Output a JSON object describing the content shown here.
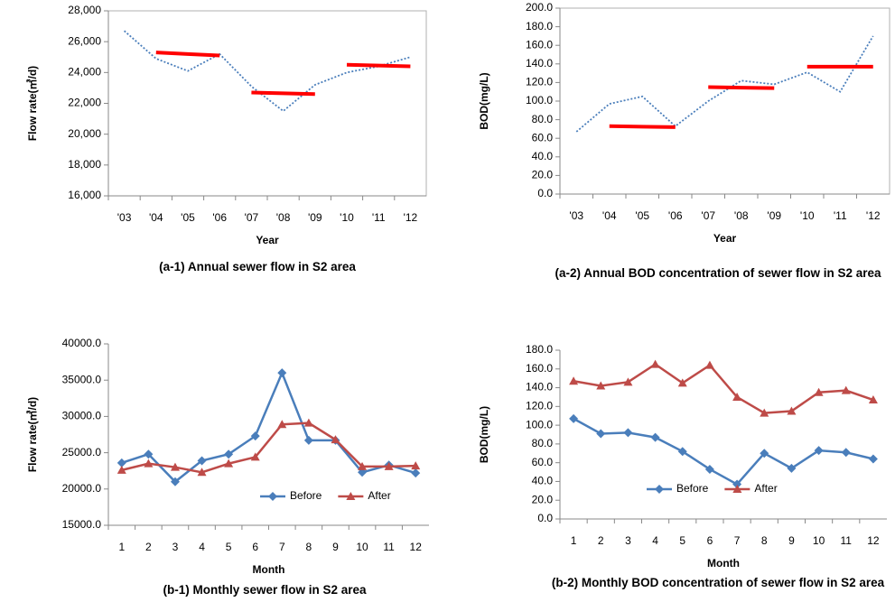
{
  "chart_data": [
    {
      "type": "line",
      "title": "(a-1) Annual sewer flow in S2 area",
      "x_label": "Year",
      "y_label": "Flow rate(㎥/d)",
      "categories": [
        "'03",
        "'04",
        "'05",
        "'06",
        "'07",
        "'08",
        "'09",
        "'10",
        "'11",
        "'12"
      ],
      "series": [
        {
          "color": "#4a7ebb",
          "line_style": "dotted",
          "values": [
            26700,
            24900,
            24100,
            25200,
            23100,
            21500,
            23200,
            24000,
            24400,
            25000
          ]
        },
        {
          "color": "#ff0000",
          "line_width": 4,
          "values": [
            null,
            25300,
            25200,
            25100,
            null,
            null,
            null,
            null,
            null,
            null
          ]
        },
        {
          "color": "#ff0000",
          "line_width": 4,
          "values": [
            null,
            null,
            null,
            null,
            22700,
            22650,
            22600,
            null,
            null,
            null
          ]
        },
        {
          "color": "#ff0000",
          "line_width": 4,
          "values": [
            null,
            null,
            null,
            null,
            null,
            null,
            null,
            24500,
            24450,
            24400
          ]
        }
      ],
      "ylim": [
        16000,
        28000
      ],
      "yticks": [
        {
          "value": 16000,
          "label": "16,000"
        },
        {
          "value": 18000,
          "label": "18,000"
        },
        {
          "value": 20000,
          "label": "20,000"
        },
        {
          "value": 22000,
          "label": "22,000"
        },
        {
          "value": 24000,
          "label": "24,000"
        },
        {
          "value": 26000,
          "label": "26,000"
        },
        {
          "value": 28000,
          "label": "28,000"
        }
      ],
      "frame": true
    },
    {
      "type": "line",
      "title": "(a-2) Annual BOD concentration of sewer flow in S2 area",
      "x_label": "Year",
      "y_label": "BOD(mg/L)",
      "categories": [
        "'03",
        "'04",
        "'05",
        "'06",
        "'07",
        "'08",
        "'09",
        "'10",
        "'11",
        "'12"
      ],
      "series": [
        {
          "color": "#4a7ebb",
          "line_style": "dotted",
          "values": [
            67,
            97,
            105,
            73,
            100,
            122,
            118,
            131,
            110,
            170
          ]
        },
        {
          "color": "#ff0000",
          "line_width": 4,
          "values": [
            null,
            73,
            72.5,
            72,
            null,
            null,
            null,
            null,
            null,
            null
          ]
        },
        {
          "color": "#ff0000",
          "line_width": 4,
          "values": [
            null,
            null,
            null,
            null,
            115,
            114.5,
            114,
            null,
            null,
            null
          ]
        },
        {
          "color": "#ff0000",
          "line_width": 4,
          "values": [
            null,
            null,
            null,
            null,
            null,
            null,
            null,
            137,
            137,
            137
          ]
        }
      ],
      "ylim": [
        0,
        200
      ],
      "yticks": [
        {
          "value": 0,
          "label": "0.0"
        },
        {
          "value": 20,
          "label": "20.0"
        },
        {
          "value": 40,
          "label": "40.0"
        },
        {
          "value": 60,
          "label": "60.0"
        },
        {
          "value": 80,
          "label": "80.0"
        },
        {
          "value": 100,
          "label": "100.0"
        },
        {
          "value": 120,
          "label": "120.0"
        },
        {
          "value": 140,
          "label": "140.0"
        },
        {
          "value": 160,
          "label": "160.0"
        },
        {
          "value": 180,
          "label": "180.0"
        },
        {
          "value": 200,
          "label": "200.0"
        }
      ],
      "frame": true
    },
    {
      "type": "line",
      "title": "(b-1) Monthly sewer flow in S2 area",
      "x_label": "Month",
      "y_label": "Flow rate(㎥/d)",
      "categories": [
        "1",
        "2",
        "3",
        "4",
        "5",
        "6",
        "7",
        "8",
        "9",
        "10",
        "11",
        "12"
      ],
      "series": [
        {
          "name": "Before",
          "color": "#4a7ebb",
          "marker": "diamond",
          "values": [
            23600,
            24800,
            21000,
            23900,
            24800,
            27300,
            36000,
            26700,
            26700,
            22300,
            23300,
            22200
          ]
        },
        {
          "name": "After",
          "color": "#be4b48",
          "marker": "triangle",
          "values": [
            22600,
            23500,
            23000,
            22300,
            23500,
            24400,
            28900,
            29100,
            26800,
            23100,
            23100,
            23200
          ]
        }
      ],
      "ylim": [
        15000,
        40000
      ],
      "yticks": [
        {
          "value": 15000,
          "label": "15000.0"
        },
        {
          "value": 20000,
          "label": "20000.0"
        },
        {
          "value": 25000,
          "label": "25000.0"
        },
        {
          "value": 30000,
          "label": "30000.0"
        },
        {
          "value": 35000,
          "label": "35000.0"
        },
        {
          "value": 40000,
          "label": "40000.0"
        }
      ],
      "frame": false,
      "legend": "lower right"
    },
    {
      "type": "line",
      "title": "(b-2) Monthly BOD concentration of sewer flow in S2 area",
      "x_label": "Month",
      "y_label": "BOD(mg/L)",
      "categories": [
        "1",
        "2",
        "3",
        "4",
        "5",
        "6",
        "7",
        "8",
        "9",
        "10",
        "11",
        "12"
      ],
      "series": [
        {
          "name": "Before",
          "color": "#4a7ebb",
          "marker": "diamond",
          "values": [
            107,
            91,
            92,
            87,
            72,
            53,
            37,
            70,
            54,
            73,
            71,
            64
          ]
        },
        {
          "name": "After",
          "color": "#be4b48",
          "marker": "triangle",
          "values": [
            147,
            142,
            146,
            165,
            145,
            164,
            130,
            113,
            115,
            135,
            137,
            127
          ]
        }
      ],
      "ylim": [
        0,
        180
      ],
      "yticks": [
        {
          "value": 0,
          "label": "0.0"
        },
        {
          "value": 20,
          "label": "20.0"
        },
        {
          "value": 40,
          "label": "40.0"
        },
        {
          "value": 60,
          "label": "60.0"
        },
        {
          "value": 80,
          "label": "80.0"
        },
        {
          "value": 100,
          "label": "100.0"
        },
        {
          "value": 120,
          "label": "120.0"
        },
        {
          "value": 140,
          "label": "140.0"
        },
        {
          "value": 160,
          "label": "160.0"
        },
        {
          "value": 180,
          "label": "180.0"
        }
      ],
      "frame": false,
      "legend": "lower center"
    }
  ]
}
